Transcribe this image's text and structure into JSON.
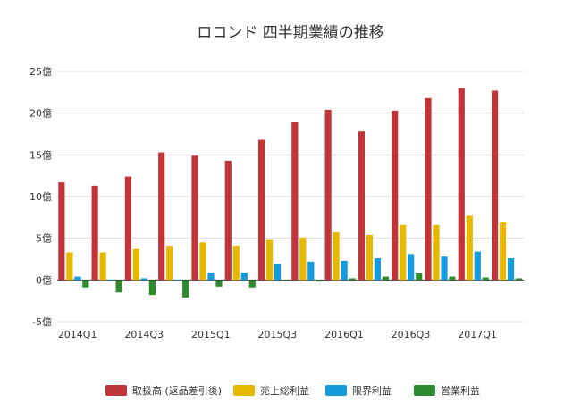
{
  "chart_data": {
    "type": "bar",
    "title": "ロコンド 四半期業績の推移",
    "xlabel": "",
    "ylabel": "",
    "ylim": [
      -5,
      25
    ],
    "yticks": [
      -5,
      0,
      5,
      10,
      15,
      20,
      25
    ],
    "y_tick_labels": [
      "-5億",
      "0億",
      "5億",
      "10億",
      "15億",
      "20億",
      "25億"
    ],
    "categories": [
      "2014Q1",
      "2014Q2",
      "2014Q3",
      "2014Q4",
      "2015Q1",
      "2015Q2",
      "2015Q3",
      "2015Q4",
      "2016Q1",
      "2016Q2",
      "2016Q3",
      "2016Q4",
      "2017Q1",
      "2017Q2"
    ],
    "x_tick_labels": [
      "2014Q1",
      "",
      "2014Q3",
      "",
      "2015Q1",
      "",
      "2015Q3",
      "",
      "2016Q1",
      "",
      "2016Q3",
      "",
      "2017Q1",
      ""
    ],
    "grid": true,
    "legend_position": "bottom",
    "series": [
      {
        "name": "取扱高 (返品差引後)",
        "color": "#c0353a",
        "values": [
          11.7,
          11.3,
          12.4,
          15.3,
          14.9,
          14.3,
          16.8,
          19.0,
          20.4,
          17.8,
          20.3,
          21.8,
          23.0,
          22.7
        ]
      },
      {
        "name": "売上総利益",
        "color": "#e6b800",
        "values": [
          3.3,
          3.3,
          3.7,
          4.1,
          4.5,
          4.1,
          4.8,
          5.1,
          5.7,
          5.4,
          6.6,
          6.6,
          7.7,
          6.9
        ]
      },
      {
        "name": "限界利益",
        "color": "#159bdc",
        "values": [
          0.4,
          0.0,
          0.2,
          0.0,
          0.9,
          0.9,
          1.9,
          2.2,
          2.3,
          2.6,
          3.1,
          2.8,
          3.4,
          2.6
        ]
      },
      {
        "name": "営業利益",
        "color": "#2e8a2e",
        "values": [
          -0.9,
          -1.5,
          -1.8,
          -2.1,
          -0.8,
          -0.9,
          0.0,
          -0.2,
          0.2,
          0.4,
          0.8,
          0.4,
          0.3,
          0.2
        ]
      }
    ]
  }
}
